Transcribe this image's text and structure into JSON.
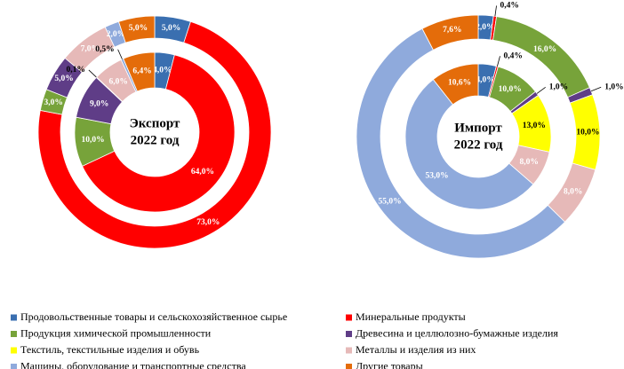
{
  "chart_data": [
    {
      "type": "donut",
      "center_label": [
        "Экспорт",
        "2022 год"
      ],
      "categories": [
        "Продовольственные товары и сельскохозяйственное сырье",
        "Минеральные продукты",
        "Продукция химической промышленности",
        "Древесина и целлюлозно-бумажные изделия",
        "Текстиль, текстильные изделия и обувь",
        "Металлы и изделия из них",
        "Машины, оборудование и транспортные средства",
        "Другие товары"
      ],
      "colors": [
        "#3a6fb0",
        "#ff0000",
        "#77a33a",
        "#5f3d87",
        "#ffff00",
        "#e6b9b8",
        "#8faadc",
        "#e46c0a"
      ],
      "rings": [
        {
          "values": [
            5.0,
            73.0,
            3.0,
            5.0,
            null,
            7.0,
            2.0,
            5.0
          ],
          "value_labels": [
            "5,0%",
            "73,0%",
            "3,0%",
            "5,0%",
            null,
            "7,0%",
            "2,0%",
            "5,0%"
          ]
        },
        {
          "values": [
            4.0,
            64.0,
            10.0,
            9.0,
            0.1,
            6.0,
            0.5,
            6.4
          ],
          "value_labels": [
            "4,0%",
            "64,0%",
            "10,0%",
            "9,0%",
            "0,1%",
            "6,0%",
            "0,5%",
            "6,4%"
          ]
        }
      ]
    },
    {
      "type": "donut",
      "center_label": [
        "Импорт",
        "2022 год"
      ],
      "categories": [
        "Продовольственные товары и сельскохозяйственное сырье",
        "Минеральные продукты",
        "Продукция химической промышленности",
        "Древесина и целлюлозно-бумажные изделия",
        "Текстиль, текстильные изделия и обувь",
        "Металлы и изделия из них",
        "Машины, оборудование и транспортные средства",
        "Другие товары"
      ],
      "colors": [
        "#3a6fb0",
        "#ff0000",
        "#77a33a",
        "#5f3d87",
        "#ffff00",
        "#e6b9b8",
        "#8faadc",
        "#e46c0a"
      ],
      "rings": [
        {
          "values": [
            2.0,
            0.4,
            16.0,
            1.0,
            10.0,
            8.0,
            55.0,
            7.6
          ],
          "value_labels": [
            "2,0%",
            "0,4%",
            "16,0%",
            "1,0%",
            "10,0%",
            "8,0%",
            "55,0%",
            "7,6%"
          ]
        },
        {
          "values": [
            4.0,
            0.4,
            10.0,
            1.0,
            13.0,
            8.0,
            53.0,
            10.6
          ],
          "value_labels": [
            "4,0%",
            "0,4%",
            "10,0%",
            "1,0%",
            "13,0%",
            "8,0%",
            "53,0%",
            "10,6%"
          ]
        }
      ]
    }
  ]
}
